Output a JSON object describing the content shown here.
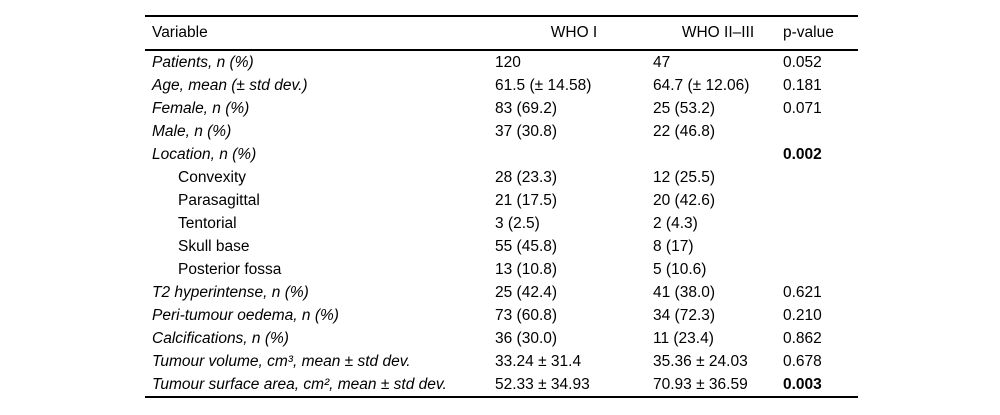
{
  "colors": {
    "background": "#ffffff",
    "text": "#000000",
    "rule": "#000000"
  },
  "table": {
    "columns": [
      "Variable",
      "WHO I",
      "WHO II–III",
      "p-value"
    ],
    "rows": [
      {
        "variable": "Patients, n (%)",
        "who_i": "120",
        "who_ii_iii": "47",
        "p_value": "0.052",
        "italic": true,
        "indent": false,
        "p_bold": false
      },
      {
        "variable": "Age, mean (± std dev.)",
        "who_i": "61.5 (± 14.58)",
        "who_ii_iii": "64.7 (± 12.06)",
        "p_value": "0.181",
        "italic": true,
        "indent": false,
        "p_bold": false
      },
      {
        "variable": "Female, n (%)",
        "who_i": "83 (69.2)",
        "who_ii_iii": "25 (53.2)",
        "p_value": "0.071",
        "italic": true,
        "indent": false,
        "p_bold": false
      },
      {
        "variable": "Male, n (%)",
        "who_i": "37 (30.8)",
        "who_ii_iii": "22 (46.8)",
        "p_value": "",
        "italic": true,
        "indent": false,
        "p_bold": false
      },
      {
        "variable": "Location, n (%)",
        "who_i": "",
        "who_ii_iii": "",
        "p_value": "0.002",
        "italic": true,
        "indent": false,
        "p_bold": true
      },
      {
        "variable": "Convexity",
        "who_i": "28 (23.3)",
        "who_ii_iii": "12 (25.5)",
        "p_value": "",
        "italic": false,
        "indent": true,
        "p_bold": false
      },
      {
        "variable": "Parasagittal",
        "who_i": "21 (17.5)",
        "who_ii_iii": "20 (42.6)",
        "p_value": "",
        "italic": false,
        "indent": true,
        "p_bold": false
      },
      {
        "variable": "Tentorial",
        "who_i": "3 (2.5)",
        "who_ii_iii": "2 (4.3)",
        "p_value": "",
        "italic": false,
        "indent": true,
        "p_bold": false
      },
      {
        "variable": "Skull base",
        "who_i": "55 (45.8)",
        "who_ii_iii": "8 (17)",
        "p_value": "",
        "italic": false,
        "indent": true,
        "p_bold": false
      },
      {
        "variable": "Posterior fossa",
        "who_i": "13 (10.8)",
        "who_ii_iii": "5 (10.6)",
        "p_value": "",
        "italic": false,
        "indent": true,
        "p_bold": false
      },
      {
        "variable": "T2 hyperintense, n (%)",
        "who_i": "25 (42.4)",
        "who_ii_iii": "41 (38.0)",
        "p_value": "0.621",
        "italic": true,
        "indent": false,
        "p_bold": false
      },
      {
        "variable": "Peri-tumour oedema, n (%)",
        "who_i": "73 (60.8)",
        "who_ii_iii": "34 (72.3)",
        "p_value": "0.210",
        "italic": true,
        "indent": false,
        "p_bold": false
      },
      {
        "variable": "Calcifications, n (%)",
        "who_i": "36 (30.0)",
        "who_ii_iii": "11 (23.4)",
        "p_value": "0.862",
        "italic": true,
        "indent": false,
        "p_bold": false
      },
      {
        "variable": "Tumour volume, cm³, mean ± std dev.",
        "who_i": "33.24 ± 31.4",
        "who_ii_iii": "35.36 ± 24.03",
        "p_value": "0.678",
        "italic": true,
        "indent": false,
        "p_bold": false
      },
      {
        "variable": "Tumour surface area, cm², mean ± std dev.",
        "who_i": "52.33 ± 34.93",
        "who_ii_iii": "70.93 ± 36.59",
        "p_value": "0.003",
        "italic": true,
        "indent": false,
        "p_bold": true
      }
    ]
  }
}
